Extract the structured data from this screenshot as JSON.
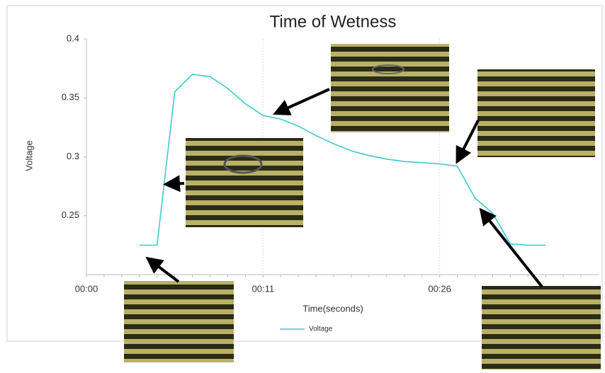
{
  "chart_data": {
    "type": "line",
    "title": "Time of Wetness",
    "x_label": "Time(seconds)",
    "y_label": "Voltage",
    "categories": [
      "00:00",
      null,
      null,
      null,
      null,
      null,
      null,
      null,
      null,
      null,
      "00:11",
      null,
      null,
      null,
      null,
      null,
      null,
      null,
      null,
      null,
      "00:26",
      null,
      null,
      null,
      null,
      null,
      null,
      null,
      null
    ],
    "series": [
      {
        "name": "Voltage",
        "color": "#3fc9d2",
        "values": [
          null,
          null,
          null,
          0.225,
          0.225,
          0.355,
          0.37,
          0.368,
          0.358,
          0.345,
          0.335,
          0.332,
          0.326,
          0.318,
          0.311,
          0.305,
          0.301,
          0.298,
          0.296,
          0.295,
          0.294,
          0.292,
          0.265,
          0.252,
          0.226,
          0.225,
          0.225,
          null,
          null
        ]
      }
    ],
    "ylim": [
      0.2,
      0.4
    ],
    "yticks": [
      0.25,
      0.3,
      0.35,
      0.4
    ],
    "grid": true
  }
}
